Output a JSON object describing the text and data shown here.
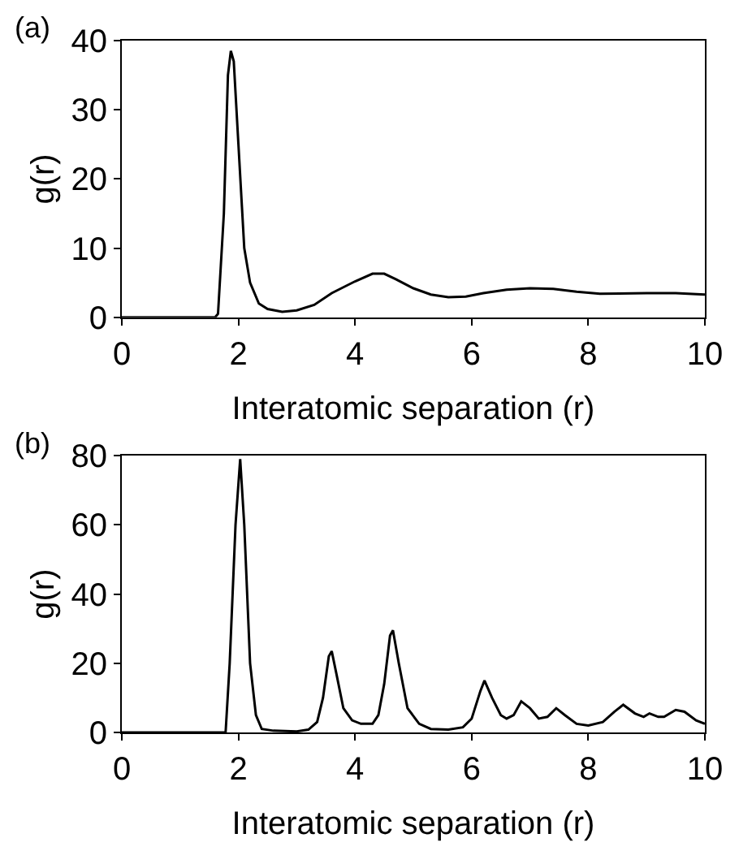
{
  "chart_data": [
    {
      "type": "line",
      "title": "(a)",
      "xlabel": "Interatomic separation (r)",
      "ylabel": "g(r)",
      "xlim": [
        0,
        10
      ],
      "ylim": [
        0,
        40
      ],
      "xticks": [
        0,
        2,
        4,
        6,
        8,
        10
      ],
      "yticks": [
        0,
        10,
        20,
        30,
        40
      ],
      "marker": "none",
      "line_style": "solid",
      "series": [
        {
          "color": "#000000",
          "x": [
            0,
            1.6,
            1.65,
            1.75,
            1.82,
            1.87,
            1.92,
            2.0,
            2.1,
            2.2,
            2.35,
            2.5,
            2.75,
            3.0,
            3.3,
            3.6,
            4.0,
            4.3,
            4.5,
            4.7,
            5.0,
            5.3,
            5.6,
            5.9,
            6.2,
            6.6,
            7.0,
            7.4,
            7.8,
            8.2,
            9.0,
            9.5,
            10
          ],
          "values": [
            0,
            0,
            0.5,
            15,
            35,
            38.5,
            37,
            25,
            10,
            5,
            2,
            1.2,
            0.8,
            1.0,
            1.8,
            3.5,
            5.2,
            6.3,
            6.3,
            5.5,
            4.2,
            3.3,
            2.9,
            3.0,
            3.5,
            4.0,
            4.2,
            4.1,
            3.7,
            3.4,
            3.5,
            3.5,
            3.3
          ]
        }
      ]
    },
    {
      "type": "line",
      "title": "(b)",
      "xlabel": "Interatomic separation (r)",
      "ylabel": "g(r)",
      "xlim": [
        0,
        10
      ],
      "ylim": [
        0,
        80
      ],
      "xticks": [
        0,
        2,
        4,
        6,
        8,
        10
      ],
      "yticks": [
        0,
        20,
        40,
        60,
        80
      ],
      "marker": "none",
      "line_style": "solid",
      "series": [
        {
          "color": "#000000",
          "x": [
            0,
            1.78,
            1.85,
            1.95,
            2.03,
            2.1,
            2.2,
            2.3,
            2.4,
            2.6,
            3.0,
            3.2,
            3.35,
            3.45,
            3.55,
            3.6,
            3.68,
            3.8,
            3.95,
            4.1,
            4.3,
            4.4,
            4.5,
            4.6,
            4.65,
            4.75,
            4.9,
            5.1,
            5.3,
            5.6,
            5.85,
            6.0,
            6.15,
            6.22,
            6.35,
            6.5,
            6.6,
            6.72,
            6.85,
            7.0,
            7.15,
            7.3,
            7.45,
            7.6,
            7.8,
            8.0,
            8.25,
            8.45,
            8.6,
            8.8,
            8.95,
            9.05,
            9.2,
            9.3,
            9.5,
            9.65,
            9.85,
            10
          ],
          "values": [
            0,
            0,
            20,
            60,
            79,
            60,
            20,
            5,
            1,
            0.5,
            0.3,
            0.8,
            3,
            10,
            22,
            23.5,
            17,
            7,
            3.5,
            2.5,
            2.5,
            5,
            14,
            28,
            29.5,
            20,
            7,
            2.5,
            1,
            0.8,
            1.5,
            4,
            12,
            15,
            10,
            5,
            4,
            5,
            9,
            7,
            4,
            4.5,
            7,
            5,
            2.5,
            2.0,
            3,
            6,
            8,
            5.5,
            4.5,
            5.5,
            4.5,
            4.5,
            6.5,
            6,
            3.5,
            2.5
          ]
        }
      ]
    }
  ]
}
